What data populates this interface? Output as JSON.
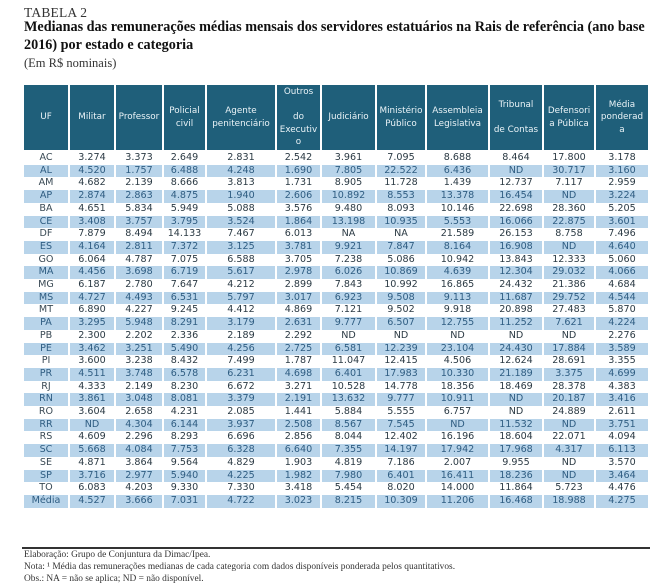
{
  "document": {
    "table_label": "TABELA 2",
    "title": "Medianas das remunerações médias mensais dos servidores estatuários na Rais de referência (ano base 2016) por estado e categoria",
    "unit": "(Em R$ nominais)",
    "source": "Elaboração: Grupo de Conjuntura da Dimac/Ipea.",
    "note": "Nota: ¹ Média das remunerações medianas de cada categoria com dados disponíveis ponderada pelos quantitativos.",
    "obs": "Obs.: NA = não se aplica; ND = não disponível."
  },
  "colors": {
    "header_bg": "#1f5f7a",
    "header_text": "#eaf3f7",
    "alt_row_bg": "#b8d4ea",
    "alt_row_text": "#2f5d82",
    "text": "#2b3a44"
  },
  "chart_data": {
    "type": "table",
    "title": "Medianas das remunerações médias mensais dos servidores estatuários na Rais de referência (ano base 2016) por estado e categoria",
    "columns": [
      "UF",
      "Militar",
      "Professor",
      "Policial civil",
      "Agente penitenciário",
      "Outros do Executivo",
      "Judiciário",
      "Ministério Público",
      "Assembleia Legislativa",
      "Tribunal de Contas",
      "Defensoria Pública",
      "Média ponderada"
    ],
    "header_display": [
      "UF",
      "Militar",
      "Professor",
      "Policial\ncivil",
      "Agente\npenitenciário",
      "Outros\n\ndo\nExecutiv\no",
      "Judiciário",
      "Ministério\nPúblico",
      "Assembleia\nLegislativa",
      "Tribunal\n\nde Contas",
      "Defensori\na Pública",
      "Média\nponderad\na"
    ],
    "rows": [
      [
        "AC",
        "3.274",
        "3.373",
        "2.649",
        "2.831",
        "2.542",
        "3.961",
        "7.095",
        "8.688",
        "8.464",
        "17.800",
        "3.178"
      ],
      [
        "AL",
        "4.520",
        "1.757",
        "6.488",
        "4.248",
        "1.690",
        "7.805",
        "22.522",
        "6.436",
        "ND",
        "30.717",
        "3.160"
      ],
      [
        "AM",
        "4.682",
        "2.139",
        "8.666",
        "3.813",
        "1.731",
        "8.905",
        "11.728",
        "1.439",
        "12.737",
        "7.117",
        "2.959"
      ],
      [
        "AP",
        "2.874",
        "2.863",
        "4.875",
        "1.940",
        "2.606",
        "10.892",
        "8.553",
        "13.378",
        "16.454",
        "ND",
        "3.224"
      ],
      [
        "BA",
        "4.651",
        "5.834",
        "5.949",
        "5.088",
        "3.576",
        "9.480",
        "8.093",
        "10.146",
        "22.698",
        "28.360",
        "5.205"
      ],
      [
        "CE",
        "3.408",
        "3.757",
        "3.795",
        "3.524",
        "1.864",
        "13.198",
        "10.935",
        "5.553",
        "16.066",
        "22.875",
        "3.601"
      ],
      [
        "DF",
        "7.879",
        "8.494",
        "14.133",
        "7.467",
        "6.013",
        "NA",
        "NA",
        "21.589",
        "26.153",
        "8.758",
        "7.496"
      ],
      [
        "ES",
        "4.164",
        "2.811",
        "7.372",
        "3.125",
        "3.781",
        "9.921",
        "7.847",
        "8.164",
        "16.908",
        "ND",
        "4.640"
      ],
      [
        "GO",
        "6.064",
        "4.787",
        "7.075",
        "6.588",
        "3.705",
        "7.238",
        "5.086",
        "10.942",
        "13.843",
        "12.333",
        "5.060"
      ],
      [
        "MA",
        "4.456",
        "3.698",
        "6.719",
        "5.617",
        "2.978",
        "6.026",
        "10.869",
        "4.639",
        "12.304",
        "29.032",
        "4.066"
      ],
      [
        "MG",
        "6.187",
        "2.780",
        "7.647",
        "4.212",
        "2.899",
        "7.843",
        "10.992",
        "16.865",
        "24.432",
        "21.386",
        "4.684"
      ],
      [
        "MS",
        "4.727",
        "4.493",
        "6.531",
        "5.797",
        "3.017",
        "6.923",
        "9.508",
        "9.113",
        "11.687",
        "29.752",
        "4.544"
      ],
      [
        "MT",
        "6.890",
        "4.227",
        "9.245",
        "4.412",
        "4.869",
        "7.121",
        "9.502",
        "9.918",
        "20.898",
        "27.483",
        "5.870"
      ],
      [
        "PA",
        "3.295",
        "5.948",
        "8.291",
        "3.179",
        "2.631",
        "9.777",
        "6.507",
        "12.755",
        "11.252",
        "7.621",
        "4.224"
      ],
      [
        "PB",
        "2.300",
        "2.202",
        "2.336",
        "2.189",
        "2.292",
        "ND",
        "ND",
        "ND",
        "ND",
        "ND",
        "2.276"
      ],
      [
        "PE",
        "3.462",
        "3.251",
        "5.490",
        "4.256",
        "2.725",
        "6.581",
        "12.239",
        "23.104",
        "24.430",
        "17.884",
        "3.589"
      ],
      [
        "PI",
        "3.600",
        "3.238",
        "8.432",
        "7.499",
        "1.787",
        "11.047",
        "12.415",
        "4.506",
        "12.624",
        "28.691",
        "3.355"
      ],
      [
        "PR",
        "4.511",
        "3.748",
        "6.578",
        "6.231",
        "4.698",
        "6.401",
        "17.983",
        "10.330",
        "21.189",
        "3.375",
        "4.699"
      ],
      [
        "RJ",
        "4.333",
        "2.149",
        "8.230",
        "6.672",
        "3.271",
        "10.528",
        "14.778",
        "18.356",
        "18.469",
        "28.378",
        "4.383"
      ],
      [
        "RN",
        "3.861",
        "3.048",
        "8.081",
        "3.379",
        "2.191",
        "13.632",
        "9.777",
        "10.911",
        "ND",
        "20.187",
        "3.416"
      ],
      [
        "RO",
        "3.604",
        "2.658",
        "4.231",
        "2.085",
        "1.441",
        "5.884",
        "5.555",
        "6.757",
        "ND",
        "24.889",
        "2.611"
      ],
      [
        "RR",
        "ND",
        "4.304",
        "6.144",
        "3.937",
        "2.508",
        "8.567",
        "7.545",
        "ND",
        "11.532",
        "ND",
        "3.751"
      ],
      [
        "RS",
        "4.609",
        "2.296",
        "8.293",
        "6.696",
        "2.856",
        "8.044",
        "12.402",
        "16.196",
        "18.604",
        "22.071",
        "4.094"
      ],
      [
        "SC",
        "5.668",
        "4.084",
        "7.753",
        "6.328",
        "6.640",
        "7.355",
        "14.197",
        "17.942",
        "17.968",
        "4.317",
        "6.113"
      ],
      [
        "SE",
        "4.871",
        "3.864",
        "9.564",
        "4.829",
        "1.903",
        "4.819",
        "7.186",
        "2.007",
        "9.955",
        "ND",
        "3.570"
      ],
      [
        "SP",
        "3.716",
        "2.977",
        "5.940",
        "4.225",
        "1.982",
        "7.980",
        "6.401",
        "16.411",
        "18.236",
        "ND",
        "3.464"
      ],
      [
        "TO",
        "6.083",
        "4.203",
        "9.330",
        "7.330",
        "3.418",
        "5.454",
        "8.020",
        "14.000",
        "11.864",
        "5.723",
        "4.476"
      ],
      [
        "Média",
        "4.527",
        "3.666",
        "7.031",
        "4.722",
        "3.023",
        "8.215",
        "10.309",
        "11.206",
        "16.468",
        "18.988",
        "4.275"
      ]
    ]
  }
}
